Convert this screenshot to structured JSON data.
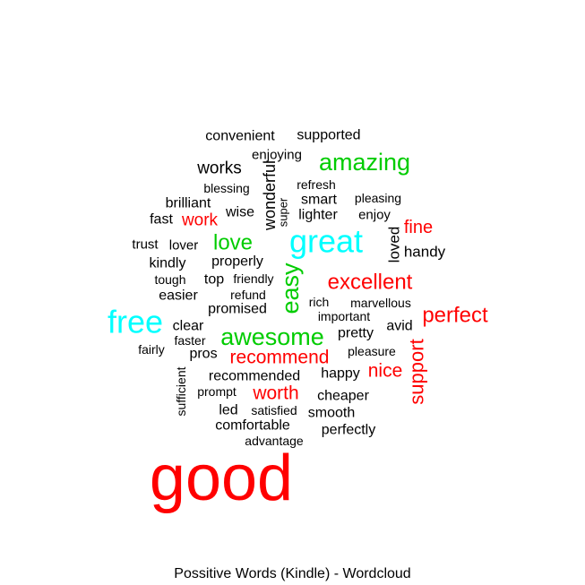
{
  "chart_data": {
    "type": "wordcloud",
    "title": "Possitive Words (Kindle) - Wordcloud",
    "colors": {
      "black": "#000000",
      "red": "#ff0000",
      "green": "#00cc00",
      "cyan": "#00ffff"
    },
    "words": [
      {
        "text": "good",
        "color": "#ff0000"
      },
      {
        "text": "great",
        "color": "#00ffff"
      },
      {
        "text": "free",
        "color": "#00ffff"
      },
      {
        "text": "easy",
        "color": "#00cc00"
      },
      {
        "text": "awesome",
        "color": "#00cc00"
      },
      {
        "text": "amazing",
        "color": "#00cc00"
      },
      {
        "text": "love",
        "color": "#00cc00"
      },
      {
        "text": "excellent",
        "color": "#ff0000"
      },
      {
        "text": "perfect",
        "color": "#ff0000"
      },
      {
        "text": "support",
        "color": "#ff0000"
      },
      {
        "text": "recommend",
        "color": "#ff0000"
      },
      {
        "text": "worth",
        "color": "#ff0000"
      },
      {
        "text": "nice",
        "color": "#ff0000"
      },
      {
        "text": "fine",
        "color": "#ff0000"
      },
      {
        "text": "work",
        "color": "#ff0000"
      },
      {
        "text": "works",
        "color": "#000000"
      },
      {
        "text": "wonderful",
        "color": "#000000"
      },
      {
        "text": "loved",
        "color": "#000000"
      },
      {
        "text": "convenient",
        "color": "#000000"
      },
      {
        "text": "supported",
        "color": "#000000"
      },
      {
        "text": "enjoying",
        "color": "#000000"
      },
      {
        "text": "brilliant",
        "color": "#000000"
      },
      {
        "text": "smart",
        "color": "#000000"
      },
      {
        "text": "lighter",
        "color": "#000000"
      },
      {
        "text": "fast",
        "color": "#000000"
      },
      {
        "text": "wise",
        "color": "#000000"
      },
      {
        "text": "enjoy",
        "color": "#000000"
      },
      {
        "text": "handy",
        "color": "#000000"
      },
      {
        "text": "properly",
        "color": "#000000"
      },
      {
        "text": "easier",
        "color": "#000000"
      },
      {
        "text": "top",
        "color": "#000000"
      },
      {
        "text": "promised",
        "color": "#000000"
      },
      {
        "text": "clear",
        "color": "#000000"
      },
      {
        "text": "pretty",
        "color": "#000000"
      },
      {
        "text": "avid",
        "color": "#000000"
      },
      {
        "text": "pros",
        "color": "#000000"
      },
      {
        "text": "recommended",
        "color": "#000000"
      },
      {
        "text": "happy",
        "color": "#000000"
      },
      {
        "text": "cheaper",
        "color": "#000000"
      },
      {
        "text": "comfortable",
        "color": "#000000"
      },
      {
        "text": "smooth",
        "color": "#000000"
      },
      {
        "text": "perfectly",
        "color": "#000000"
      },
      {
        "text": "led",
        "color": "#000000"
      },
      {
        "text": "kindly",
        "color": "#000000"
      },
      {
        "text": "trust",
        "color": "#000000"
      },
      {
        "text": "lover",
        "color": "#000000"
      },
      {
        "text": "blessing",
        "color": "#000000"
      },
      {
        "text": "refresh",
        "color": "#000000"
      },
      {
        "text": "pleasing",
        "color": "#000000"
      },
      {
        "text": "super",
        "color": "#000000"
      },
      {
        "text": "tough",
        "color": "#000000"
      },
      {
        "text": "friendly",
        "color": "#000000"
      },
      {
        "text": "refund",
        "color": "#000000"
      },
      {
        "text": "rich",
        "color": "#000000"
      },
      {
        "text": "marvellous",
        "color": "#000000"
      },
      {
        "text": "important",
        "color": "#000000"
      },
      {
        "text": "faster",
        "color": "#000000"
      },
      {
        "text": "fairly",
        "color": "#000000"
      },
      {
        "text": "pleasure",
        "color": "#000000"
      },
      {
        "text": "sufficient",
        "color": "#000000"
      },
      {
        "text": "prompt",
        "color": "#000000"
      },
      {
        "text": "satisfied",
        "color": "#000000"
      },
      {
        "text": "advantage",
        "color": "#000000"
      }
    ]
  }
}
